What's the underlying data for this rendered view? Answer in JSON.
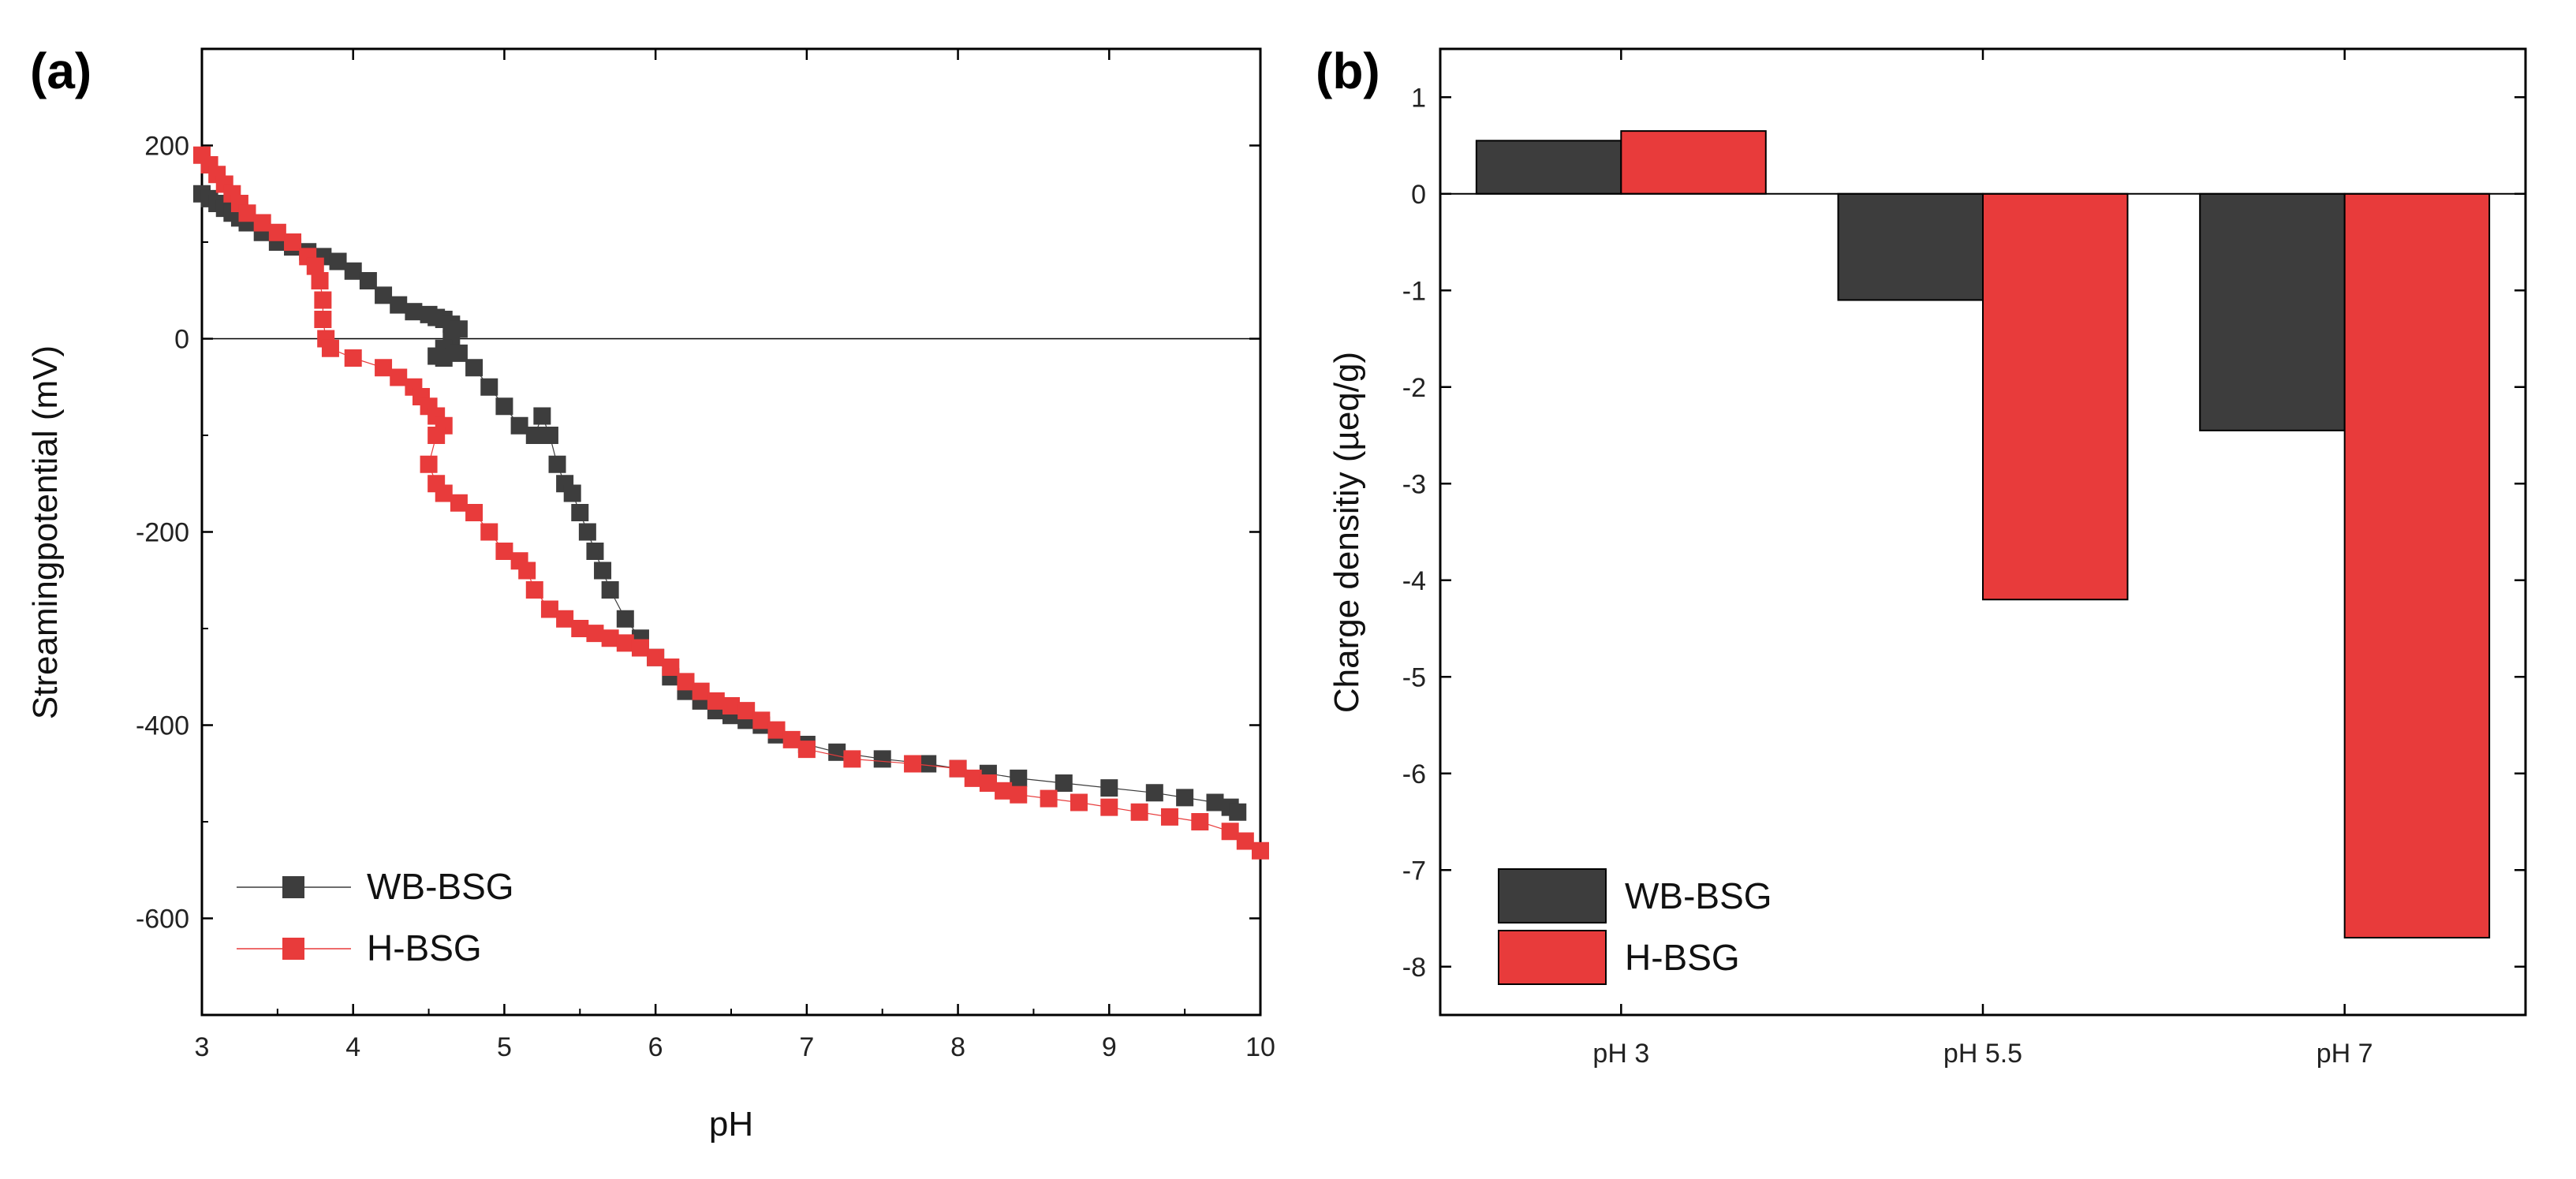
{
  "colors": {
    "wb": "#3d3d3d",
    "h": "#e83b3b",
    "axis": "#000000"
  },
  "chart_data": [
    {
      "type": "scatter",
      "panel_label": "(a)",
      "xlabel": "pH",
      "ylabel": "Streamingpotential (mV)",
      "xlim": [
        3,
        10
      ],
      "ylim": [
        -700,
        300
      ],
      "xticks": [
        3,
        4,
        5,
        6,
        7,
        8,
        9,
        10
      ],
      "yticks": [
        -600,
        -400,
        -200,
        0,
        200
      ],
      "zero_line": true,
      "legend_position": "bottom-left",
      "series": [
        {
          "name": "WB-BSG",
          "color": "#3d3d3d",
          "marker": "square",
          "x": [
            3.0,
            3.05,
            3.1,
            3.15,
            3.2,
            3.25,
            3.3,
            3.4,
            3.5,
            3.6,
            3.7,
            3.8,
            3.9,
            4.0,
            4.1,
            4.2,
            4.3,
            4.4,
            4.5,
            4.55,
            4.6,
            4.65,
            4.7,
            4.65,
            4.6,
            4.55,
            4.6,
            4.7,
            4.8,
            4.9,
            5.0,
            5.1,
            5.2,
            5.25,
            5.3,
            5.35,
            5.4,
            5.45,
            5.5,
            5.55,
            5.6,
            5.65,
            5.7,
            5.8,
            5.9,
            6.0,
            6.1,
            6.2,
            6.3,
            6.4,
            6.5,
            6.6,
            6.7,
            6.8,
            7.0,
            7.2,
            7.5,
            7.8,
            8.0,
            8.2,
            8.4,
            8.7,
            9.0,
            9.3,
            9.5,
            9.7,
            9.8,
            9.85
          ],
          "y": [
            150,
            145,
            140,
            135,
            130,
            125,
            120,
            110,
            100,
            95,
            90,
            85,
            80,
            70,
            60,
            45,
            35,
            28,
            25,
            22,
            20,
            15,
            10,
            0,
            -10,
            -18,
            -20,
            -15,
            -30,
            -50,
            -70,
            -90,
            -100,
            -80,
            -100,
            -130,
            -150,
            -160,
            -180,
            -200,
            -220,
            -240,
            -260,
            -290,
            -310,
            -330,
            -350,
            -365,
            -375,
            -385,
            -390,
            -395,
            -400,
            -410,
            -420,
            -428,
            -435,
            -440,
            -445,
            -450,
            -455,
            -460,
            -465,
            -470,
            -475,
            -480,
            -485,
            -490
          ]
        },
        {
          "name": "H-BSG",
          "color": "#e83b3b",
          "marker": "square",
          "x": [
            3.0,
            3.05,
            3.1,
            3.15,
            3.2,
            3.25,
            3.3,
            3.4,
            3.5,
            3.6,
            3.7,
            3.75,
            3.78,
            3.8,
            3.8,
            3.82,
            3.85,
            4.0,
            4.2,
            4.3,
            4.4,
            4.45,
            4.5,
            4.55,
            4.6,
            4.55,
            4.5,
            4.55,
            4.6,
            4.7,
            4.8,
            4.9,
            5.0,
            5.1,
            5.15,
            5.2,
            5.3,
            5.4,
            5.5,
            5.6,
            5.7,
            5.8,
            5.9,
            6.0,
            6.1,
            6.2,
            6.3,
            6.4,
            6.5,
            6.6,
            6.7,
            6.8,
            6.9,
            7.0,
            7.3,
            7.7,
            8.0,
            8.1,
            8.2,
            8.3,
            8.4,
            8.6,
            8.8,
            9.0,
            9.2,
            9.4,
            9.6,
            9.8,
            9.9,
            10.0
          ],
          "y": [
            190,
            180,
            170,
            160,
            150,
            140,
            130,
            120,
            110,
            100,
            85,
            75,
            60,
            40,
            20,
            0,
            -10,
            -20,
            -30,
            -40,
            -50,
            -60,
            -70,
            -80,
            -90,
            -100,
            -130,
            -150,
            -160,
            -170,
            -180,
            -200,
            -220,
            -230,
            -240,
            -260,
            -280,
            -290,
            -300,
            -305,
            -310,
            -315,
            -320,
            -330,
            -340,
            -355,
            -365,
            -375,
            -380,
            -385,
            -395,
            -405,
            -415,
            -425,
            -435,
            -440,
            -445,
            -455,
            -460,
            -468,
            -472,
            -476,
            -480,
            -485,
            -490,
            -495,
            -500,
            -510,
            -520,
            -530
          ]
        }
      ]
    },
    {
      "type": "bar",
      "panel_label": "(b)",
      "xlabel": "",
      "ylabel": "Charge densitiy (µeq/g)",
      "ylim": [
        -8.5,
        1.5
      ],
      "yticks": [
        -8,
        -7,
        -6,
        -5,
        -4,
        -3,
        -2,
        -1,
        0,
        1
      ],
      "categories": [
        "pH 3",
        "pH 5.5",
        "pH 7"
      ],
      "legend_position": "bottom-left",
      "series": [
        {
          "name": "WB-BSG",
          "color": "#3d3d3d",
          "values": [
            0.55,
            -1.1,
            -2.45
          ]
        },
        {
          "name": "H-BSG",
          "color": "#e83b3b",
          "values": [
            0.65,
            -4.2,
            -7.7
          ]
        }
      ]
    }
  ]
}
